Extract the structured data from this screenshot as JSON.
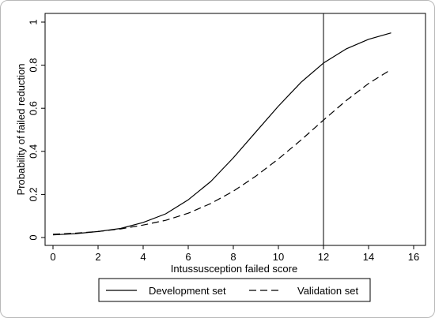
{
  "chart_data": {
    "type": "line",
    "title": "",
    "xlabel": "Intussusception failed score",
    "ylabel": "Probability of failed reduction",
    "xlim": [
      0,
      16
    ],
    "ylim": [
      0,
      1
    ],
    "xticks": [
      0,
      2,
      4,
      6,
      8,
      10,
      12,
      14,
      16
    ],
    "yticks": [
      0,
      0.2,
      0.4,
      0.6,
      0.8,
      1
    ],
    "ytick_labels": [
      "0",
      "0.2",
      "0.4",
      "0.6",
      "0.8",
      "1"
    ],
    "grid": false,
    "legend_position": "bottom",
    "reference_line": {
      "x": 12
    },
    "series": [
      {
        "name": "Development set",
        "style": "solid",
        "color": "#000000",
        "x": [
          0,
          1,
          2,
          3,
          4,
          5,
          6,
          7,
          8,
          9,
          10,
          11,
          12,
          13,
          14,
          15
        ],
        "y": [
          0.012,
          0.018,
          0.028,
          0.042,
          0.07,
          0.11,
          0.175,
          0.26,
          0.37,
          0.49,
          0.61,
          0.72,
          0.81,
          0.875,
          0.92,
          0.95
        ]
      },
      {
        "name": "Validation set",
        "style": "dashed",
        "color": "#000000",
        "x": [
          0,
          1,
          2,
          3,
          4,
          5,
          6,
          7,
          8,
          9,
          10,
          11,
          12,
          13,
          14,
          15
        ],
        "y": [
          0.015,
          0.02,
          0.028,
          0.04,
          0.058,
          0.08,
          0.113,
          0.158,
          0.215,
          0.285,
          0.365,
          0.452,
          0.545,
          0.635,
          0.715,
          0.78
        ]
      }
    ]
  }
}
